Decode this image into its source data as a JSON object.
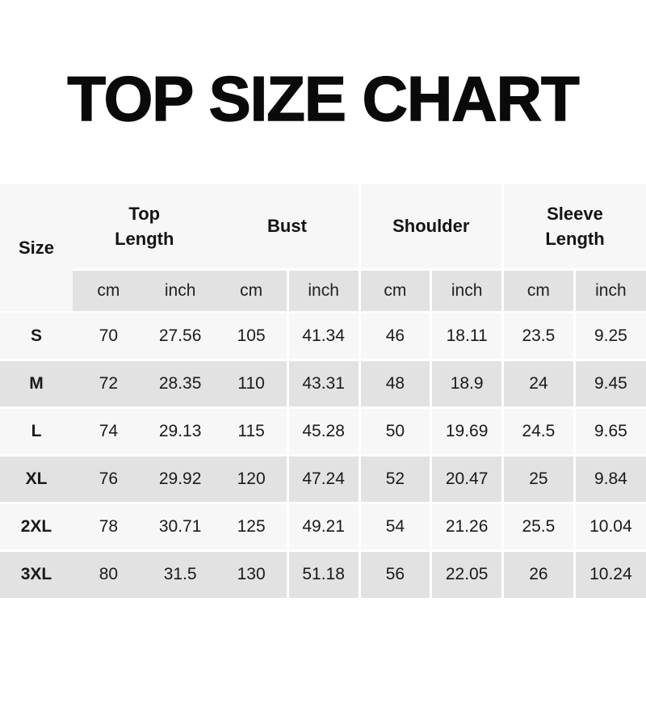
{
  "title": "TOP SIZE CHART",
  "table": {
    "size_header": "Size",
    "groups": [
      {
        "label": "Top\nLength"
      },
      {
        "label": "Bust"
      },
      {
        "label": "Shoulder"
      },
      {
        "label": "Sleeve\nLength"
      }
    ],
    "units": [
      "cm",
      "inch",
      "cm",
      "inch",
      "cm",
      "inch",
      "cm",
      "inch"
    ],
    "rows": [
      {
        "size": "S",
        "values": [
          "70",
          "27.56",
          "105",
          "41.34",
          "46",
          "18.11",
          "23.5",
          "9.25"
        ]
      },
      {
        "size": "M",
        "values": [
          "72",
          "28.35",
          "110",
          "43.31",
          "48",
          "18.9",
          "24",
          "9.45"
        ]
      },
      {
        "size": "L",
        "values": [
          "74",
          "29.13",
          "115",
          "45.28",
          "50",
          "19.69",
          "24.5",
          "9.65"
        ]
      },
      {
        "size": "XL",
        "values": [
          "76",
          "29.92",
          "120",
          "47.24",
          "52",
          "20.47",
          "25",
          "9.84"
        ]
      },
      {
        "size": "2XL",
        "values": [
          "78",
          "30.71",
          "125",
          "49.21",
          "54",
          "21.26",
          "25.5",
          "10.04"
        ]
      },
      {
        "size": "3XL",
        "values": [
          "80",
          "31.5",
          "130",
          "51.18",
          "56",
          "22.05",
          "26",
          "10.24"
        ]
      }
    ],
    "colors": {
      "row_light": "#f7f7f7",
      "row_gray": "#e2e2e2",
      "separator": "#ffffff",
      "text": "#141414"
    }
  }
}
